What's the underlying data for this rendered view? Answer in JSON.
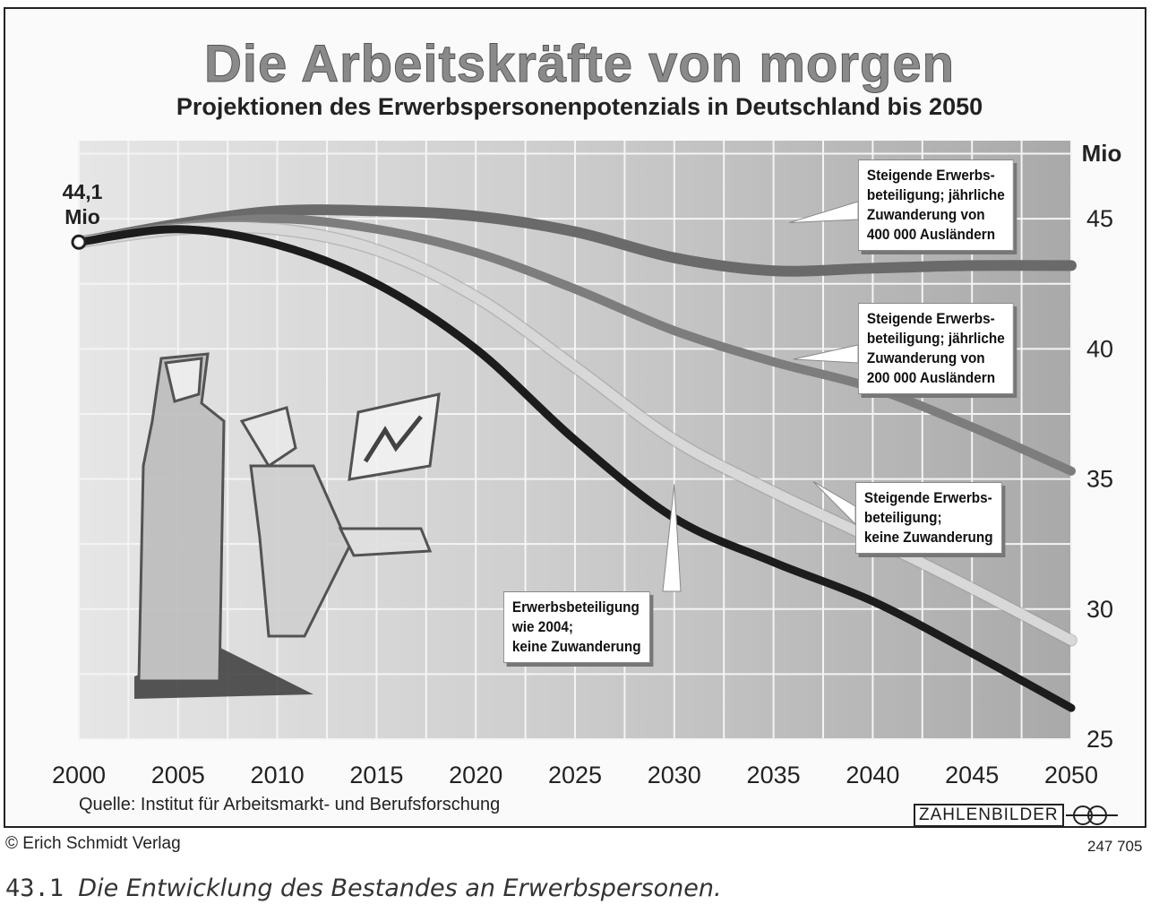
{
  "title": "Die Arbeitskräfte von morgen",
  "subtitle": "Projektionen des Erwerbspersonenpotenzials in Deutschland bis 2050",
  "source": "Quelle: Institut für Arbeitsmarkt- und Berufsforschung",
  "copyright": "© Erich Schmidt Verlag",
  "code": "247 705",
  "logo_text": "ZAHLENBILDER",
  "caption_number": "43.1",
  "caption_text": "Die Entwicklung des Bestandes an Erwerbspersonen.",
  "start_label": {
    "value": "44,1",
    "unit": "Mio"
  },
  "chart_data": {
    "type": "line",
    "title": "Die Arbeitskräfte von morgen",
    "subtitle": "Projektionen des Erwerbspersonenpotenzials in Deutschland bis 2050",
    "xlabel": "",
    "ylabel": "Mio",
    "x_ticks": [
      "2000",
      "2005",
      "2010",
      "2015",
      "2020",
      "2025",
      "2030",
      "2035",
      "2040",
      "2045",
      "2050"
    ],
    "y_ticks": [
      "25",
      "30",
      "35",
      "40",
      "45"
    ],
    "xlim": [
      2000,
      2050
    ],
    "ylim": [
      25,
      48
    ],
    "grid": true,
    "x": [
      2000,
      2005,
      2010,
      2015,
      2020,
      2025,
      2030,
      2035,
      2040,
      2045,
      2050
    ],
    "series": [
      {
        "name": "Steigende Erwerbsbeteiligung; jährliche Zuwanderung von 400 000 Ausländern",
        "label_lines": [
          "Steigende Erwerbs-",
          "beteiligung; jährliche",
          "Zuwanderung von",
          "400 000 Ausländern"
        ],
        "color": "#6a6a6a",
        "values": [
          44.1,
          44.8,
          45.3,
          45.3,
          45.1,
          44.5,
          43.5,
          43.0,
          43.1,
          43.2,
          43.2
        ]
      },
      {
        "name": "Steigende Erwerbsbeteiligung; jährliche Zuwanderung von 200 000 Ausländern",
        "label_lines": [
          "Steigende Erwerbs-",
          "beteiligung; jährliche",
          "Zuwanderung von",
          "200 000 Ausländern"
        ],
        "color": "#7d7d7d",
        "values": [
          44.1,
          44.7,
          45.0,
          44.6,
          43.7,
          42.3,
          40.7,
          39.5,
          38.5,
          37.0,
          35.3
        ]
      },
      {
        "name": "Steigende Erwerbsbeteiligung; keine Zuwanderung",
        "label_lines": [
          "Steigende Erwerbs-",
          "beteiligung;",
          "keine Zuwanderung"
        ],
        "color": "#d8d8d8",
        "values": [
          44.1,
          44.6,
          44.6,
          43.8,
          42.0,
          39.3,
          36.5,
          34.5,
          32.7,
          30.8,
          28.8
        ]
      },
      {
        "name": "Erwerbsbeteiligung wie 2004; keine Zuwanderung",
        "label_lines": [
          "Erwerbsbeteiligung",
          "wie 2004;",
          "keine Zuwanderung"
        ],
        "color": "#1c1c1c",
        "values": [
          44.1,
          44.6,
          44.0,
          42.5,
          40.0,
          36.5,
          33.5,
          31.8,
          30.3,
          28.3,
          26.2
        ]
      }
    ]
  }
}
